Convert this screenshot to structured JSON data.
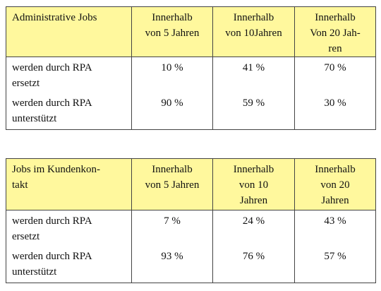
{
  "tables": [
    {
      "header": [
        "Administrative Jobs",
        "Innerhalb\nvon 5 Jahren",
        "Innerhalb\nvon 10Jahren",
        "Innerhalb\nVon 20 Jah-\nren"
      ],
      "rows": [
        {
          "label": "werden durch RPA\nersetzt",
          "values": [
            "10 %",
            "41 %",
            "70 %"
          ]
        },
        {
          "label": "werden durch RPA\nunterstützt",
          "values": [
            "90 %",
            "59 %",
            "30 %"
          ]
        }
      ]
    },
    {
      "header": [
        "Jobs im Kundenkon-\ntakt",
        "Innerhalb\nvon 5 Jahren",
        "Innerhalb\nvon 10\nJahren",
        "Innerhalb\nvon 20\nJahren"
      ],
      "rows": [
        {
          "label": "werden durch RPA\nersetzt",
          "values": [
            "7 %",
            "24 %",
            "43 %"
          ]
        },
        {
          "label": "werden durch RPA\nunterstützt",
          "values": [
            "93 %",
            "76 %",
            "57 %"
          ]
        }
      ]
    }
  ],
  "colors": {
    "header_background": "#fff89d",
    "border": "#444444",
    "text": "#111111"
  }
}
